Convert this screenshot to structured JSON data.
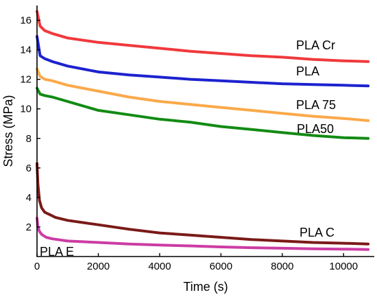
{
  "chart_data": {
    "type": "line",
    "title": "",
    "xlabel": "Time (s)",
    "ylabel": "Stress (MPa)",
    "xlim": [
      0,
      11000
    ],
    "ylim": [
      0,
      17
    ],
    "xticks": [
      0,
      2000,
      4000,
      6000,
      8000,
      10000
    ],
    "yticks": [
      2,
      4,
      6,
      8,
      10,
      12,
      14,
      16
    ],
    "xtick_labels": [
      "0",
      "2000",
      "4000",
      "6000",
      "8000",
      "10000"
    ],
    "ytick_labels": [
      "2",
      "4",
      "6",
      "8",
      "10",
      "12",
      "14",
      "16"
    ],
    "grid": false,
    "legend": "inline labels",
    "series": [
      {
        "name": "PLA Cr",
        "color": "#f0393c",
        "x": [
          0,
          100,
          250,
          500,
          1000,
          2000,
          3000,
          4000,
          5000,
          6000,
          7000,
          8000,
          9000,
          10000,
          10800
        ],
        "y": [
          16.6,
          15.6,
          15.3,
          15.1,
          14.8,
          14.5,
          14.3,
          14.1,
          13.9,
          13.75,
          13.6,
          13.5,
          13.35,
          13.25,
          13.2
        ]
      },
      {
        "name": "PLA",
        "color": "#1d22cf",
        "x": [
          0,
          100,
          250,
          500,
          1000,
          2000,
          3000,
          4000,
          5000,
          6000,
          7000,
          8000,
          9000,
          10000,
          10800
        ],
        "y": [
          14.9,
          13.6,
          13.4,
          13.2,
          12.9,
          12.5,
          12.3,
          12.15,
          12.0,
          11.9,
          11.8,
          11.7,
          11.65,
          11.6,
          11.55
        ]
      },
      {
        "name": "PLA 75",
        "color": "#fba94a",
        "x": [
          0,
          100,
          250,
          500,
          1000,
          2000,
          3000,
          4000,
          5000,
          6000,
          7000,
          8000,
          9000,
          10000,
          10800
        ],
        "y": [
          12.7,
          12.2,
          12.0,
          11.9,
          11.6,
          11.2,
          10.8,
          10.5,
          10.3,
          10.1,
          9.9,
          9.7,
          9.5,
          9.35,
          9.2
        ]
      },
      {
        "name": "PLA50",
        "color": "#128b14",
        "x": [
          0,
          100,
          250,
          500,
          1000,
          2000,
          3000,
          4000,
          5000,
          6000,
          7000,
          8000,
          9000,
          10000,
          10800
        ],
        "y": [
          11.4,
          11.0,
          10.9,
          10.8,
          10.5,
          9.9,
          9.6,
          9.3,
          9.1,
          8.8,
          8.6,
          8.4,
          8.2,
          8.05,
          8.0
        ]
      },
      {
        "name": "PLA C",
        "color": "#7a1a18",
        "x": [
          0,
          30,
          80,
          150,
          250,
          400,
          600,
          1000,
          1500,
          2000,
          3000,
          4000,
          5000,
          6000,
          7000,
          8000,
          9000,
          10000,
          10800
        ],
        "y": [
          6.3,
          4.9,
          3.8,
          3.3,
          3.0,
          2.85,
          2.65,
          2.45,
          2.3,
          2.15,
          1.85,
          1.6,
          1.45,
          1.3,
          1.15,
          1.05,
          0.95,
          0.9,
          0.85
        ]
      },
      {
        "name": "PLA E",
        "color": "#cc3ca4",
        "x": [
          0,
          30,
          80,
          150,
          300,
          500,
          1000,
          2000,
          3000,
          4000,
          5000,
          6000,
          7000,
          8000,
          9000,
          10000,
          10800
        ],
        "y": [
          2.6,
          2.0,
          1.7,
          1.5,
          1.3,
          1.2,
          1.05,
          0.95,
          0.85,
          0.78,
          0.72,
          0.65,
          0.6,
          0.56,
          0.52,
          0.5,
          0.48
        ]
      }
    ]
  }
}
